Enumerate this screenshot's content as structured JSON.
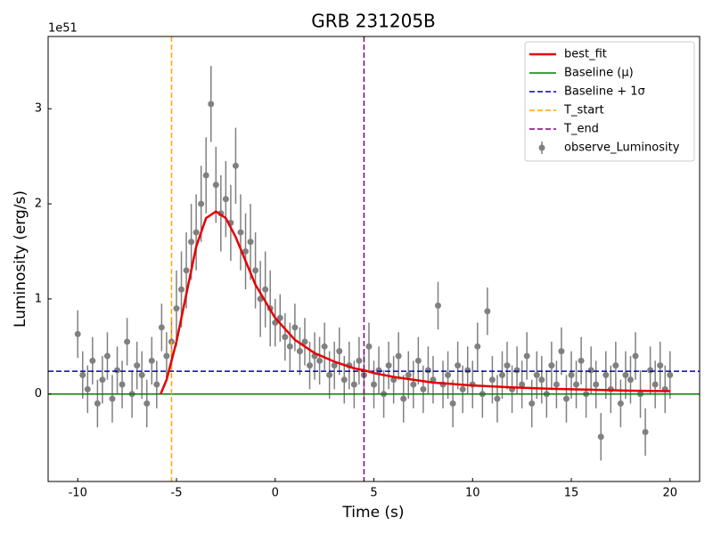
{
  "chart_data": {
    "type": "errorbar",
    "title": "GRB 231205B",
    "xlabel": "Time (s)",
    "ylabel": "Luminosity (erg/s)",
    "y_offset_label": "1e51",
    "xlim": [
      -11.5,
      21.5
    ],
    "ylim": [
      -0.92,
      3.76
    ],
    "xticks": [
      -10,
      -5,
      0,
      5,
      10,
      15,
      20
    ],
    "yticks": [
      0,
      1,
      2,
      3
    ],
    "series": [
      {
        "name": "best_fit",
        "kind": "line",
        "color": "#e60000",
        "x": [
          -5.8,
          -5.5,
          -5,
          -4.5,
          -4,
          -3.5,
          -3,
          -2.5,
          -2,
          -1.5,
          -1,
          0,
          1,
          2,
          3,
          4,
          4.5,
          5,
          6,
          8,
          10,
          12,
          14,
          16,
          18,
          20
        ],
        "values": [
          0,
          0.15,
          0.55,
          1.05,
          1.55,
          1.85,
          1.92,
          1.85,
          1.65,
          1.4,
          1.15,
          0.8,
          0.57,
          0.43,
          0.34,
          0.27,
          0.25,
          0.22,
          0.18,
          0.12,
          0.09,
          0.07,
          0.055,
          0.045,
          0.035,
          0.03
        ]
      },
      {
        "name": "observe_Luminosity",
        "kind": "errorbar",
        "color": "#808080",
        "x": [
          -10,
          -9.75,
          -9.5,
          -9.25,
          -9,
          -8.75,
          -8.5,
          -8.25,
          -8,
          -7.75,
          -7.5,
          -7.25,
          -7,
          -6.75,
          -6.5,
          -6.25,
          -6,
          -5.75,
          -5.5,
          -5.25,
          -5,
          -4.75,
          -4.5,
          -4.25,
          -4,
          -3.75,
          -3.5,
          -3.25,
          -3,
          -2.75,
          -2.5,
          -2.25,
          -2,
          -1.75,
          -1.5,
          -1.25,
          -1,
          -0.75,
          -0.5,
          -0.25,
          0,
          0.25,
          0.5,
          0.75,
          1,
          1.25,
          1.5,
          1.75,
          2,
          2.25,
          2.5,
          2.75,
          3,
          3.25,
          3.5,
          3.75,
          4,
          4.25,
          4.5,
          4.75,
          5,
          5.25,
          5.5,
          5.75,
          6,
          6.25,
          6.5,
          6.75,
          7,
          7.25,
          7.5,
          7.75,
          8,
          8.25,
          8.5,
          8.75,
          9,
          9.25,
          9.5,
          9.75,
          10,
          10.25,
          10.5,
          10.75,
          11,
          11.25,
          11.5,
          11.75,
          12,
          12.25,
          12.5,
          12.75,
          13,
          13.25,
          13.5,
          13.75,
          14,
          14.25,
          14.5,
          14.75,
          15,
          15.25,
          15.5,
          15.75,
          16,
          16.25,
          16.5,
          16.75,
          17,
          17.25,
          17.5,
          17.75,
          18,
          18.25,
          18.5,
          18.75,
          19,
          19.25,
          19.5,
          19.75,
          20
        ],
        "values": [
          0.63,
          0.2,
          0.05,
          0.35,
          -0.1,
          0.15,
          0.4,
          -0.05,
          0.25,
          0.1,
          0.55,
          0.0,
          0.3,
          0.2,
          -0.1,
          0.35,
          0.1,
          0.7,
          0.4,
          0.55,
          0.9,
          1.1,
          1.3,
          1.6,
          1.7,
          2.0,
          2.3,
          3.05,
          2.2,
          1.9,
          2.05,
          1.8,
          2.4,
          1.7,
          1.5,
          1.6,
          1.3,
          1.0,
          1.1,
          0.9,
          0.75,
          0.8,
          0.6,
          0.5,
          0.7,
          0.45,
          0.55,
          0.3,
          0.4,
          0.35,
          0.5,
          0.2,
          0.3,
          0.45,
          0.15,
          0.3,
          0.1,
          0.35,
          0.2,
          0.5,
          0.1,
          0.25,
          0.0,
          0.3,
          0.15,
          0.4,
          -0.05,
          0.2,
          0.1,
          0.35,
          0.05,
          0.25,
          0.15,
          0.93,
          0.1,
          0.2,
          -0.1,
          0.3,
          0.05,
          0.25,
          0.1,
          0.5,
          0.0,
          0.87,
          0.15,
          -0.05,
          0.2,
          0.3,
          0.05,
          0.25,
          0.1,
          0.4,
          -0.1,
          0.2,
          0.15,
          0.0,
          0.3,
          0.1,
          0.45,
          -0.05,
          0.2,
          0.1,
          0.35,
          0.0,
          0.25,
          0.1,
          -0.45,
          0.2,
          0.05,
          0.3,
          -0.1,
          0.2,
          0.15,
          0.4,
          0.0,
          -0.4,
          0.25,
          0.1,
          0.3,
          0.05,
          0.2
        ],
        "errors": [
          0.25,
          0.25,
          0.25,
          0.25,
          0.25,
          0.25,
          0.25,
          0.25,
          0.25,
          0.25,
          0.25,
          0.25,
          0.25,
          0.25,
          0.25,
          0.25,
          0.25,
          0.25,
          0.25,
          0.25,
          0.4,
          0.4,
          0.4,
          0.4,
          0.4,
          0.4,
          0.4,
          0.4,
          0.4,
          0.4,
          0.4,
          0.4,
          0.4,
          0.4,
          0.4,
          0.4,
          0.4,
          0.4,
          0.4,
          0.4,
          0.25,
          0.25,
          0.25,
          0.25,
          0.25,
          0.25,
          0.25,
          0.25,
          0.25,
          0.25,
          0.25,
          0.25,
          0.25,
          0.25,
          0.25,
          0.25,
          0.25,
          0.25,
          0.25,
          0.25,
          0.25,
          0.25,
          0.25,
          0.25,
          0.25,
          0.25,
          0.25,
          0.25,
          0.25,
          0.25,
          0.25,
          0.25,
          0.25,
          0.25,
          0.25,
          0.25,
          0.25,
          0.25,
          0.25,
          0.25,
          0.25,
          0.25,
          0.25,
          0.25,
          0.25,
          0.25,
          0.25,
          0.25,
          0.25,
          0.25,
          0.25,
          0.25,
          0.25,
          0.25,
          0.25,
          0.25,
          0.25,
          0.25,
          0.25,
          0.25,
          0.25,
          0.25,
          0.25,
          0.25,
          0.25,
          0.25,
          0.25,
          0.25,
          0.25,
          0.25,
          0.25,
          0.25,
          0.25,
          0.25,
          0.25,
          0.25,
          0.25,
          0.25,
          0.25,
          0.25,
          0.25
        ]
      }
    ],
    "hlines": [
      {
        "name": "Baseline (μ)",
        "value": 0,
        "color": "#008000",
        "style": "solid"
      },
      {
        "name": "Baseline + 1σ",
        "value": 0.24,
        "color": "#0000cc",
        "style": "dashed"
      }
    ],
    "vlines": [
      {
        "name": "T_start",
        "value": -5.25,
        "color": "#ffa500",
        "style": "dashed"
      },
      {
        "name": "T_end",
        "value": 4.5,
        "color": "#800080",
        "style": "dashed"
      }
    ],
    "legend": "upper right"
  }
}
